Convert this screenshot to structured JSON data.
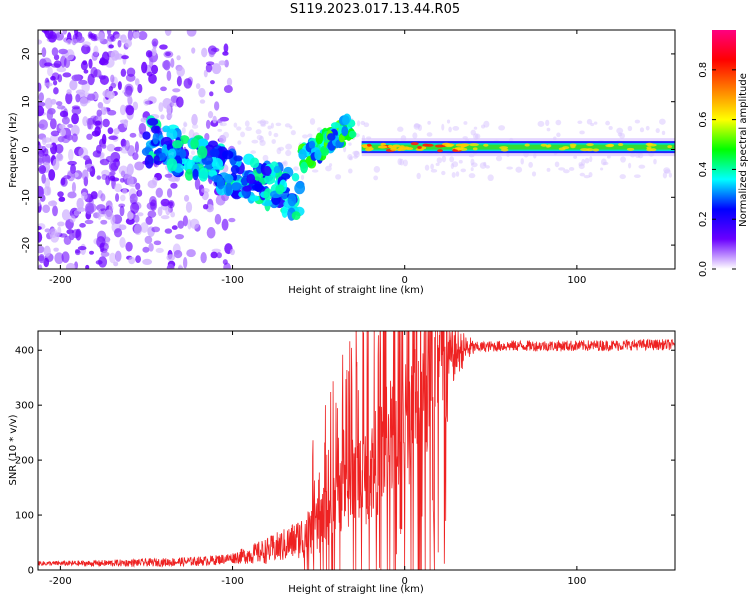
{
  "title": "S119.2023.017.13.44.R05",
  "chart_data": [
    {
      "type": "heatmap",
      "xlabel": "Height of straight line (km)",
      "ylabel": "Frequency (Hz)",
      "xlim": [
        -213,
        157
      ],
      "ylim": [
        -25,
        25
      ],
      "xticks": [
        -200,
        -100,
        0,
        100
      ],
      "yticks": [
        -20,
        -10,
        0,
        10,
        20
      ],
      "colorbar": {
        "label": "Normalized spectral amplitude",
        "range": [
          0,
          0.96
        ],
        "ticks": [
          "0.0",
          "0.2",
          "0.4",
          "0.6",
          "0.8"
        ],
        "colormap": [
          "#ffffff",
          "#6a00ff",
          "#0000ff",
          "#00ffff",
          "#00ff00",
          "#ffff00",
          "#ff8000",
          "#ff0000",
          "#ff0080"
        ]
      },
      "features": {
        "noise_region_x": [
          -213,
          -130
        ],
        "diagonal_band_x": [
          -150,
          -60
        ],
        "diagonal_band_freq": [
          2,
          -10
        ],
        "rise_band_x": [
          -60,
          -30
        ],
        "rise_band_freq": [
          -2,
          5
        ],
        "carrier_x": [
          -25,
          157
        ],
        "carrier_freq": 0.5
      }
    },
    {
      "type": "line",
      "xlabel": "Height of straight line (km)",
      "ylabel": "SNR (10 * v/v)",
      "xlim": [
        -213,
        157
      ],
      "ylim": [
        0,
        435
      ],
      "xticks": [
        -200,
        -100,
        0,
        100
      ],
      "yticks": [
        0,
        100,
        200,
        300,
        400
      ],
      "color": "#ee2222",
      "series": [
        {
          "x": [
            -213,
            -200,
            -180,
            -160,
            -140,
            -120,
            -110,
            -100,
            -90,
            -80,
            -70,
            -60,
            -50,
            -45,
            -40,
            -35,
            -30,
            -25,
            -20,
            -15,
            -10,
            -5,
            0,
            5,
            10,
            15,
            20,
            25,
            30,
            35,
            40,
            50,
            60,
            80,
            100,
            120,
            140,
            157
          ],
          "y": [
            12,
            12,
            12,
            13,
            14,
            16,
            18,
            22,
            28,
            35,
            45,
            60,
            80,
            100,
            120,
            140,
            160,
            170,
            180,
            200,
            230,
            250,
            270,
            290,
            320,
            345,
            365,
            380,
            395,
            402,
            405,
            407,
            408,
            408,
            408,
            409,
            410,
            410
          ]
        }
      ]
    }
  ]
}
